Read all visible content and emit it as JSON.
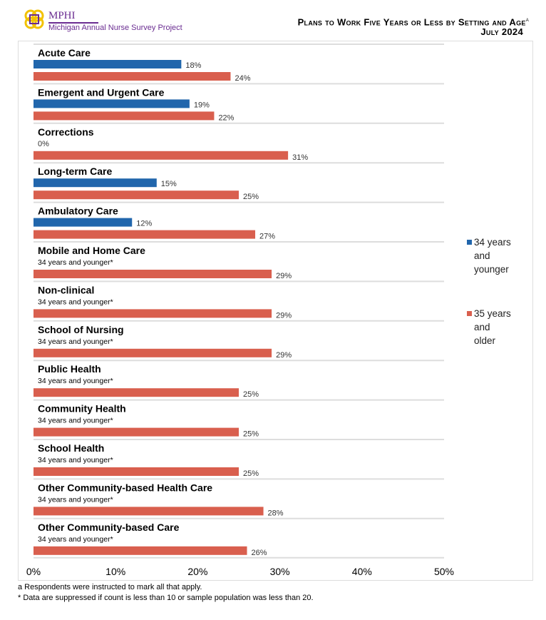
{
  "header": {
    "logo_name": "MPHI",
    "logo_subtitle": "Michigan Annual Nurse Survey Project",
    "title": "Plans to Work Five Years or Less by Setting and Age",
    "title_superscript": "a",
    "subtitle": "July 2024"
  },
  "chart_data": {
    "type": "bar",
    "orientation": "horizontal",
    "title": "Plans to Work Five Years or Less by Setting and Age",
    "xlim": [
      0,
      50
    ],
    "x_ticks": [
      "0%",
      "10%",
      "20%",
      "30%",
      "40%",
      "50%"
    ],
    "legend_placement": "right",
    "categories": [
      "Acute Care",
      "Emergent and Urgent Care",
      "Corrections",
      "Long-term Care",
      "Ambulatory Care",
      "Mobile and Home Care",
      "Non-clinical",
      "School of Nursing",
      "Public Health",
      "Community Health",
      "School Health",
      "Other Community-based Health Care",
      "Other Community-based Care"
    ],
    "series": [
      {
        "name": "34 years and younger",
        "color": "#2166ac",
        "values": [
          18,
          19,
          0,
          15,
          12,
          null,
          null,
          null,
          null,
          null,
          null,
          null,
          null
        ],
        "labels": [
          "18%",
          "19%",
          "0%",
          "15%",
          "12%",
          "34 years and younger*",
          "34 years and younger*",
          "34 years and younger*",
          "34 years and younger*",
          "34 years and younger*",
          "34 years and younger*",
          "34 years and younger*",
          "34 years and younger*"
        ]
      },
      {
        "name": "35 years and older",
        "color": "#d95f4e",
        "values": [
          24,
          22,
          31,
          25,
          27,
          29,
          29,
          29,
          25,
          25,
          25,
          28,
          26
        ],
        "labels": [
          "24%",
          "22%",
          "31%",
          "25%",
          "27%",
          "29%",
          "29%",
          "29%",
          "25%",
          "25%",
          "25%",
          "28%",
          "26%"
        ]
      }
    ]
  },
  "footnotes": [
    "a Respondents were instructed to mark all that apply.",
    "* Data are suppressed if count is less than 10 or sample population was less than 20."
  ]
}
